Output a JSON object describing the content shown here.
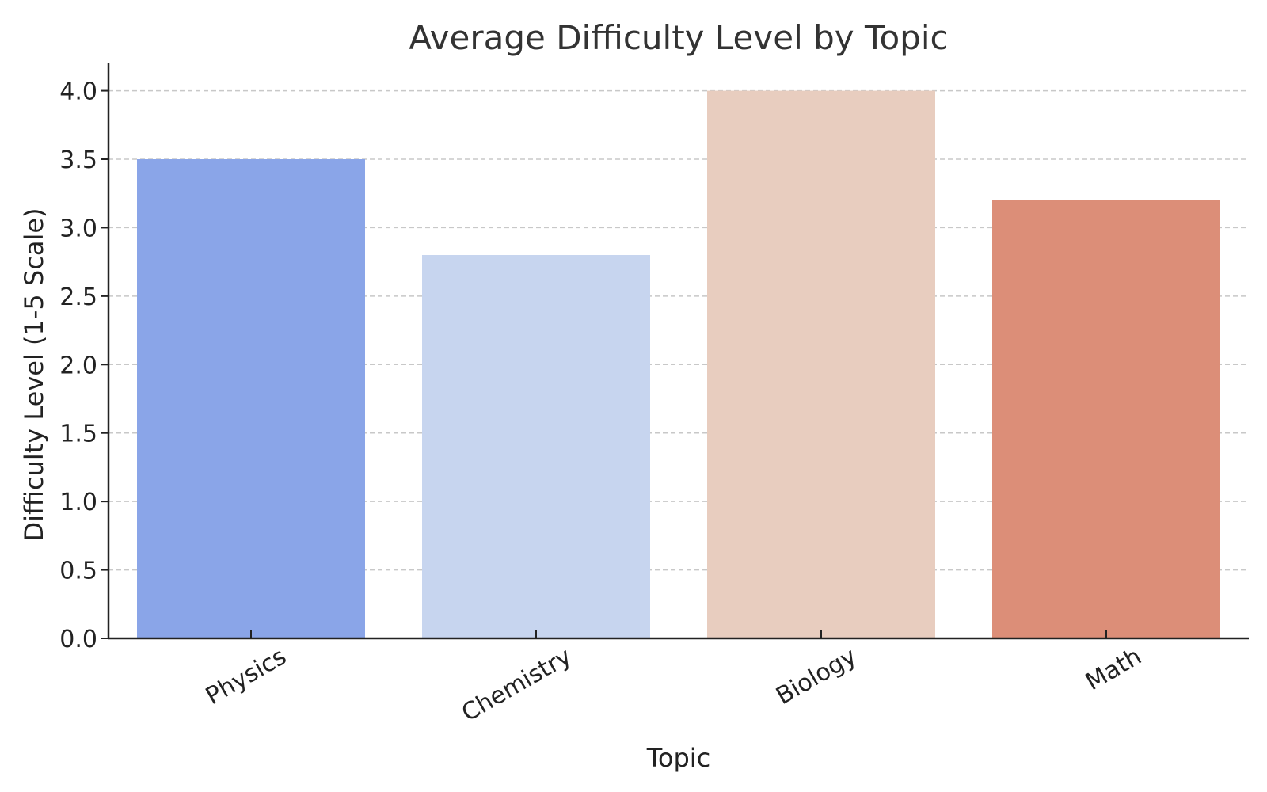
{
  "chart_data": {
    "type": "bar",
    "title": "Average Difficulty Level by Topic",
    "xlabel": "Topic",
    "ylabel": "Difficulty Level (1-5 Scale)",
    "categories": [
      "Physics",
      "Chemistry",
      "Biology",
      "Math"
    ],
    "values": [
      3.5,
      2.8,
      4.0,
      3.2
    ],
    "colors": [
      "#8aa5e8",
      "#c7d5ef",
      "#e8cdbf",
      "#dc8e78"
    ],
    "ylim": [
      0,
      4.2
    ],
    "yticks": [
      0.0,
      0.5,
      1.0,
      1.5,
      2.0,
      2.5,
      3.0,
      3.5,
      4.0
    ],
    "ytick_labels": [
      "0.0",
      "0.5",
      "1.0",
      "1.5",
      "2.0",
      "2.5",
      "3.0",
      "3.5",
      "4.0"
    ],
    "grid": "y dashed",
    "xtick_rotation": 30
  }
}
